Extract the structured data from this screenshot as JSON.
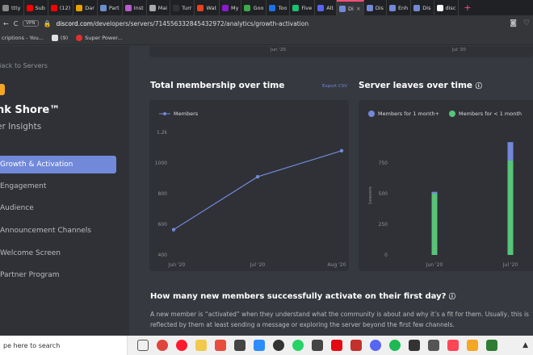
{
  "tabs": [
    {
      "label": "ttty",
      "color": "#888888"
    },
    {
      "label": "Sub",
      "color": "#ff0000"
    },
    {
      "label": "(12)",
      "color": "#ff0000"
    },
    {
      "label": "Dar",
      "color": "#e6a100"
    },
    {
      "label": "Part",
      "color": "#6a8fd1"
    },
    {
      "label": "Inst",
      "color": "#b85bd1"
    },
    {
      "label": "Mai",
      "color": "#aaaaaa"
    },
    {
      "label": "Turr",
      "color": "#333333"
    },
    {
      "label": "Wat",
      "color": "#e8411f"
    },
    {
      "label": "My",
      "color": "#8b1bd1"
    },
    {
      "label": "Goo",
      "color": "#3aaa4a"
    },
    {
      "label": "Too",
      "color": "#1a73e8"
    },
    {
      "label": "Five",
      "color": "#1dbf73"
    },
    {
      "label": "Alt",
      "color": "#5865f2"
    },
    {
      "label": "Di",
      "color": "#7289da",
      "active": true
    },
    {
      "label": "Dis",
      "color": "#7289da"
    },
    {
      "label": "Enh",
      "color": "#7289da"
    },
    {
      "label": "Dis",
      "color": "#7289da"
    },
    {
      "label": "disc",
      "color": "#ffffff"
    }
  ],
  "address": {
    "vpn": "VPN",
    "domain": "discord.com",
    "path": "/developers/servers/714556332845432972/analytics/growth-activation"
  },
  "bookmarks": [
    {
      "label": "criptions - You..."
    },
    {
      "label": "(9)"
    },
    {
      "label": "Super Power..."
    }
  ],
  "sidebar": {
    "back": "Back to Servers",
    "server_name": "nk Shore™",
    "server_sub": "er Insights",
    "nav": [
      {
        "label": "Growth & Activation",
        "active": true
      },
      {
        "label": "Engagement"
      },
      {
        "label": "Audience"
      },
      {
        "label": "Announcement Channels"
      },
      {
        "label": "Welcome Screen"
      },
      {
        "label": "Partner Program"
      }
    ]
  },
  "top_chart": {
    "ticks": [
      "Jun '20",
      "Jul '20"
    ]
  },
  "membership": {
    "title": "Total membership over time",
    "export": "Export CSV",
    "legend": "Members"
  },
  "leaves": {
    "title": "Server leaves over time",
    "legend_a": "Members for 1 month+",
    "legend_b": "Members for < 1 month",
    "ylabel": "Leavers"
  },
  "question": {
    "title": "How many new members successfully activate on their first day?",
    "body": "A new member is “activated” when they understand what the community is about and why it’s a fit for them. Usually, this is reflected by them at least sending a message or exploring the server beyond the first few channels."
  },
  "taskbar": {
    "search": "pe here to search"
  },
  "chart_data": [
    {
      "type": "line",
      "title": "Total membership over time",
      "x": [
        "Jun '20",
        "Jul '20",
        "Aug '20"
      ],
      "series": [
        {
          "name": "Members",
          "values": [
            565,
            910,
            1080
          ]
        }
      ],
      "ylim": [
        400,
        1200
      ],
      "yticks": [
        400,
        600,
        800,
        1000,
        "1.2k"
      ],
      "color": "#7289da",
      "legend": "top-left"
    },
    {
      "type": "bar",
      "title": "Server leaves over time",
      "ylabel": "Leavers",
      "categories": [
        "Jun '20",
        "Jul '20"
      ],
      "series": [
        {
          "name": "Members for < 1 month",
          "values": [
            500,
            770
          ],
          "color": "#57c478"
        },
        {
          "name": "Members for 1 month+",
          "values": [
            15,
            150
          ],
          "color": "#7289da"
        }
      ],
      "ylim": [
        0,
        1000
      ],
      "yticks": [
        0,
        250,
        500,
        750
      ],
      "stacked": true,
      "legend": "top-left"
    }
  ]
}
